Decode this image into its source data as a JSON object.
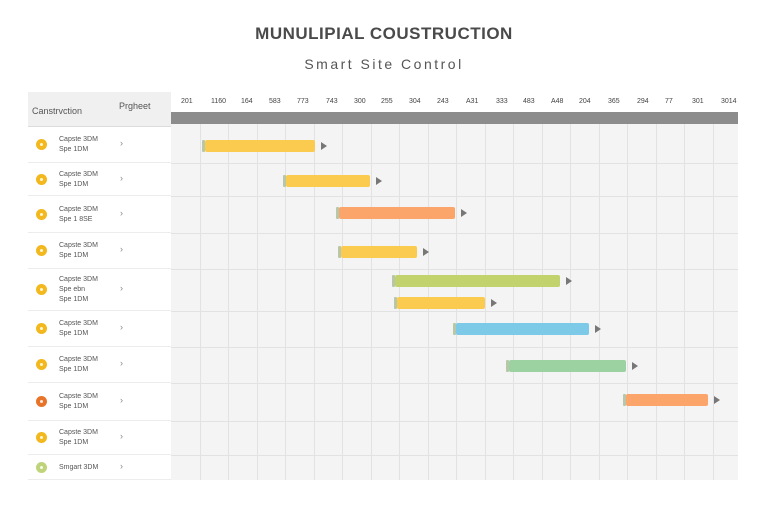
{
  "title": "MUNULIPIAL COUSTRUCTION",
  "subtitle": "Smart Site Control",
  "left_header": {
    "construction": "Canstrvction",
    "project": "Prgheet"
  },
  "dates": [
    "201",
    "1160",
    "164",
    "583",
    "773",
    "743",
    "300",
    "255",
    "304",
    "243",
    "A31",
    "333",
    "483",
    "A48",
    "204",
    "365",
    "294",
    "77",
    "301",
    "3014"
  ],
  "rows": [
    {
      "lines": [
        "Capste 3DM",
        "Spe 1DM"
      ],
      "icon_color": "#f2b81d"
    },
    {
      "lines": [
        "Capste 3DM",
        "Spe 1DM"
      ],
      "icon_color": "#f2b81d"
    },
    {
      "lines": [
        "Capste 3DM",
        "Spe 1 8SE"
      ],
      "icon_color": "#f2b81d"
    },
    {
      "lines": [
        "Capste 3DM",
        "Spe 1DM"
      ],
      "icon_color": "#f2b81d"
    },
    {
      "lines": [
        "Capste 3DM",
        "Spe ebn",
        "Spe 1DM"
      ],
      "icon_color": "#f2b81d"
    },
    {
      "lines": [
        "Capste 3DM",
        "Spe 1DM"
      ],
      "icon_color": "#f2b81d"
    },
    {
      "lines": [
        "Capste 3DM",
        "Spe 1DM"
      ],
      "icon_color": "#f2b81d"
    },
    {
      "lines": [
        "Capste 3DM",
        "Spe 1DM"
      ],
      "icon_color": "#e8742a"
    },
    {
      "lines": [
        "Capste 3DM",
        "Spe 1DM"
      ],
      "icon_color": "#f2b81d"
    },
    {
      "lines": [
        "Smgart 3DM"
      ],
      "icon_color": "#bfd47a"
    }
  ],
  "bars": [
    {
      "row": 0,
      "color": "#fbcb4f"
    },
    {
      "row": 1,
      "color": "#fbcb4f"
    },
    {
      "row": 2,
      "color": "#fba56a"
    },
    {
      "row": 3,
      "color": "#fbcb4f"
    },
    {
      "row": 4,
      "color": "#c2d36d"
    },
    {
      "row": 4,
      "color": "#fbcb4f"
    },
    {
      "row": 5,
      "color": "#7cc9e8"
    },
    {
      "row": 6,
      "color": "#9cd2a2"
    },
    {
      "row": 7,
      "color": "#fba56a"
    }
  ]
}
